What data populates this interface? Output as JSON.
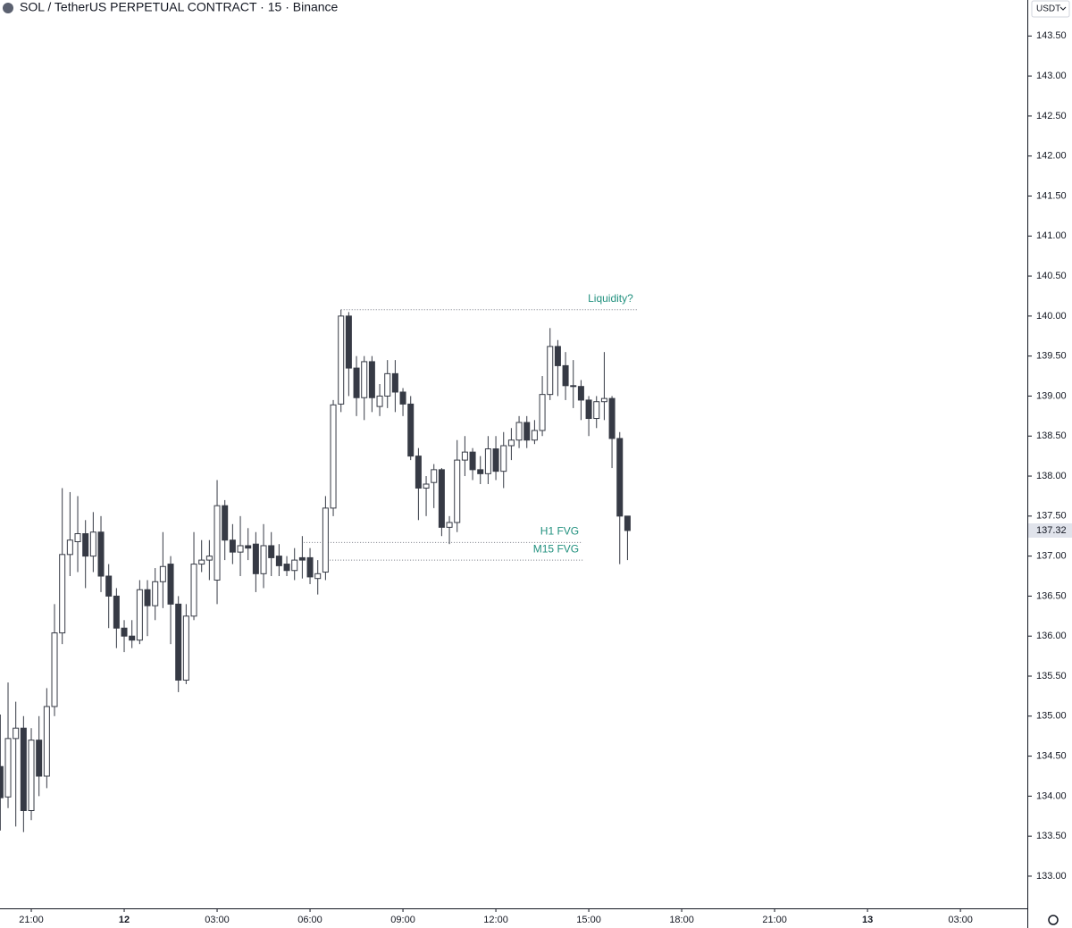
{
  "chart_data": {
    "type": "candlestick",
    "title": "SOL / TetherUS PERPETUAL CONTRACT · 15 · Binance",
    "currency": "USDT",
    "x": [
      20,
      20.25,
      20.5,
      20.75,
      21,
      21.25,
      21.5,
      21.75,
      22,
      22.25,
      22.5,
      22.75,
      23,
      23.25,
      23.5,
      23.75,
      24,
      24.25,
      24.5,
      24.75,
      25,
      25.25,
      25.5,
      25.75,
      26,
      26.25,
      26.5,
      26.75,
      27,
      27.25,
      27.5,
      27.75,
      28,
      28.25,
      28.5,
      28.75,
      29,
      29.25,
      29.5,
      29.75,
      30,
      30.25,
      30.5,
      30.75,
      31,
      31.25,
      31.5,
      31.75,
      32,
      32.25,
      32.5,
      32.75,
      33,
      33.25,
      33.5,
      33.75,
      34,
      34.25,
      34.5,
      34.75,
      35,
      35.25,
      35.5,
      35.75,
      36,
      36.25,
      36.5,
      36.75,
      37,
      37.25,
      37.5,
      37.75,
      38,
      38.25,
      38.5,
      38.75,
      39,
      39.25,
      39.5,
      39.75,
      40,
      40.25
    ],
    "series": [
      {
        "up_color": "#ffffff",
        "down_color": "#363a45",
        "wick_color": "#363a45",
        "open": [
          134.37,
          133.99,
          134.72,
          134.85,
          133.82,
          134.7,
          134.25,
          135.12,
          136.04,
          137.02,
          137.18,
          137.28,
          137.0,
          137.3,
          136.75,
          136.5,
          136.1,
          136.0,
          135.95,
          136.58,
          136.38,
          136.68,
          136.9,
          136.4,
          135.45,
          136.25,
          136.9,
          136.95,
          136.7,
          137.63,
          137.2,
          137.05,
          137.13,
          137.15,
          136.78,
          137.13,
          137.0,
          136.9,
          136.82,
          136.98,
          136.98,
          136.72,
          136.8,
          137.6,
          138.9,
          140.0,
          139.35,
          138.98,
          139.43,
          138.87,
          139.0,
          139.28,
          139.05,
          138.9,
          138.25,
          137.85,
          137.92,
          138.08,
          137.36,
          137.42,
          138.2,
          138.3,
          138.08,
          138.03,
          138.34,
          138.06,
          138.38,
          138.45,
          138.67,
          138.45,
          138.57,
          139.02,
          139.62,
          139.38,
          139.13,
          139.12,
          138.95,
          138.72,
          138.93,
          138.97,
          138.47,
          137.5
        ],
        "high": [
          135.02,
          135.42,
          135.18,
          135.0,
          134.85,
          135.0,
          135.35,
          136.4,
          137.85,
          137.8,
          137.75,
          137.45,
          137.55,
          137.5,
          136.9,
          136.6,
          136.2,
          136.2,
          136.7,
          136.7,
          136.85,
          137.3,
          137.0,
          136.5,
          136.4,
          137.3,
          137.2,
          137.2,
          137.95,
          137.7,
          137.4,
          137.5,
          137.35,
          137.3,
          137.4,
          137.3,
          137.15,
          137.0,
          137.1,
          137.25,
          137.1,
          136.95,
          137.75,
          138.95,
          140.08,
          140.05,
          139.5,
          139.5,
          139.5,
          139.15,
          139.45,
          139.45,
          139.1,
          139.0,
          138.35,
          138.0,
          138.15,
          138.1,
          137.5,
          138.45,
          138.5,
          138.35,
          138.25,
          138.5,
          138.5,
          138.55,
          138.6,
          138.75,
          138.75,
          138.7,
          139.25,
          139.85,
          139.7,
          139.55,
          139.45,
          139.2,
          139.0,
          139.0,
          139.55,
          139.0,
          138.55,
          137.5
        ],
        "low": [
          133.57,
          133.85,
          133.62,
          133.55,
          133.7,
          134.0,
          134.1,
          135.0,
          135.9,
          136.75,
          136.8,
          136.6,
          136.8,
          136.55,
          136.1,
          135.85,
          135.8,
          135.85,
          135.9,
          136.0,
          136.2,
          136.35,
          135.9,
          135.3,
          135.4,
          136.2,
          136.8,
          136.7,
          136.4,
          136.95,
          136.9,
          136.75,
          136.95,
          136.55,
          136.6,
          136.75,
          136.75,
          136.75,
          136.7,
          136.72,
          136.65,
          136.52,
          136.7,
          137.5,
          138.8,
          139.0,
          138.75,
          138.7,
          138.8,
          138.75,
          138.85,
          138.8,
          138.75,
          138.2,
          137.45,
          137.5,
          137.6,
          137.25,
          137.15,
          137.3,
          138.0,
          137.95,
          137.9,
          137.9,
          137.95,
          137.85,
          138.2,
          138.35,
          138.35,
          138.4,
          138.5,
          138.95,
          139.0,
          138.95,
          138.85,
          138.7,
          138.5,
          138.6,
          138.7,
          138.1,
          136.9,
          136.95
        ],
        "close": [
          133.98,
          134.72,
          134.85,
          133.82,
          134.7,
          134.25,
          135.12,
          136.04,
          137.02,
          137.2,
          137.28,
          137.0,
          137.3,
          136.75,
          136.5,
          136.1,
          136.0,
          135.95,
          136.58,
          136.38,
          136.68,
          136.87,
          136.4,
          135.45,
          136.25,
          136.9,
          136.95,
          137.0,
          137.63,
          137.2,
          137.05,
          137.13,
          137.1,
          136.78,
          137.13,
          136.98,
          136.88,
          136.82,
          136.95,
          136.95,
          136.74,
          136.78,
          137.6,
          138.89,
          140.0,
          139.35,
          138.98,
          139.43,
          138.98,
          139.0,
          139.28,
          139.05,
          138.9,
          138.25,
          137.85,
          137.9,
          138.08,
          137.36,
          137.42,
          138.2,
          138.3,
          138.08,
          138.03,
          138.34,
          138.06,
          138.38,
          138.45,
          138.67,
          138.45,
          138.57,
          139.02,
          139.62,
          139.38,
          139.13,
          139.12,
          138.95,
          138.72,
          138.93,
          138.97,
          138.47,
          137.5,
          137.32
        ]
      }
    ],
    "xlim": [
      19.99,
      53.16
    ],
    "ylim": [
      132.62,
      143.95
    ],
    "xticks": [
      {
        "value": 21,
        "label": "21:00"
      },
      {
        "value": 24,
        "label": "12"
      },
      {
        "value": 27,
        "label": "03:00"
      },
      {
        "value": 30,
        "label": "06:00"
      },
      {
        "value": 33,
        "label": "09:00"
      },
      {
        "value": 36,
        "label": "12:00"
      },
      {
        "value": 39,
        "label": "15:00"
      },
      {
        "value": 42,
        "label": "18:00"
      },
      {
        "value": 45,
        "label": "21:00"
      },
      {
        "value": 48,
        "label": "13"
      },
      {
        "value": 51,
        "label": "03:00"
      }
    ],
    "yticks": [
      {
        "value": 133,
        "label": "133.00"
      },
      {
        "value": 133.5,
        "label": "133.50"
      },
      {
        "value": 134,
        "label": "134.00"
      },
      {
        "value": 134.5,
        "label": "134.50"
      },
      {
        "value": 135,
        "label": "135.00"
      },
      {
        "value": 135.5,
        "label": "135.50"
      },
      {
        "value": 136,
        "label": "136.00"
      },
      {
        "value": 136.5,
        "label": "136.50"
      },
      {
        "value": 137,
        "label": "137.00"
      },
      {
        "value": 137.5,
        "label": "137.50"
      },
      {
        "value": 138,
        "label": "138.00"
      },
      {
        "value": 138.5,
        "label": "138.50"
      },
      {
        "value": 139,
        "label": "139.00"
      },
      {
        "value": 139.5,
        "label": "139.50"
      },
      {
        "value": 140,
        "label": "140.00"
      },
      {
        "value": 140.5,
        "label": "140.50"
      },
      {
        "value": 141,
        "label": "141.00"
      },
      {
        "value": 141.5,
        "label": "141.50"
      },
      {
        "value": 142,
        "label": "142.00"
      },
      {
        "value": 142.5,
        "label": "142.50"
      },
      {
        "value": 143,
        "label": "143.00"
      },
      {
        "value": 143.5,
        "label": "143.50"
      }
    ],
    "last_price": 137.32,
    "annotation_color": "#22917f",
    "annotations": [
      {
        "text": "Liquidity?",
        "y": 140.08,
        "x0": 31,
        "x1": 40.55
      },
      {
        "text": "H1 FVG",
        "y": 137.17,
        "x0": 29.8,
        "x1": 38.8
      },
      {
        "text": "M15 FVG",
        "y": 136.95,
        "x0": 30.55,
        "x1": 38.8
      }
    ]
  }
}
